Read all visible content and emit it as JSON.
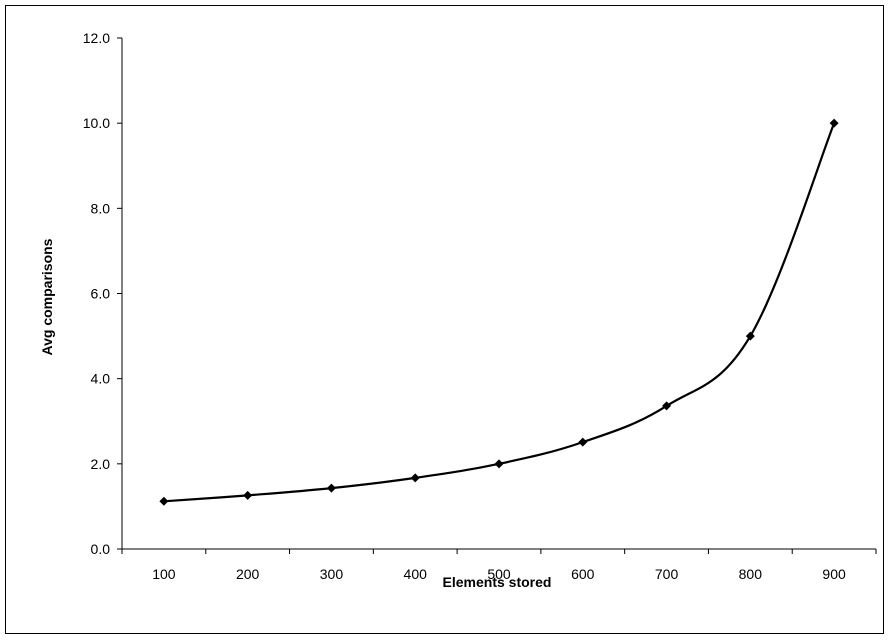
{
  "chart_data": {
    "type": "line",
    "title": "",
    "xlabel": "Elements stored",
    "ylabel": "Avg comparisons",
    "x_ticks": [
      "100",
      "200",
      "300",
      "400",
      "500",
      "600",
      "700",
      "800",
      "900"
    ],
    "y_ticks": [
      "0.0",
      "2.0",
      "4.0",
      "6.0",
      "8.0",
      "10.0",
      "12.0"
    ],
    "ylim": [
      0,
      12
    ],
    "grid": false,
    "legend": "none",
    "series": [
      {
        "marker": "diamond",
        "color": "#000000",
        "x": [
          100,
          200,
          300,
          400,
          500,
          600,
          700,
          800,
          900
        ],
        "y": [
          1.12,
          1.26,
          1.43,
          1.67,
          2.0,
          2.51,
          3.36,
          5.0,
          10.0
        ]
      }
    ]
  }
}
